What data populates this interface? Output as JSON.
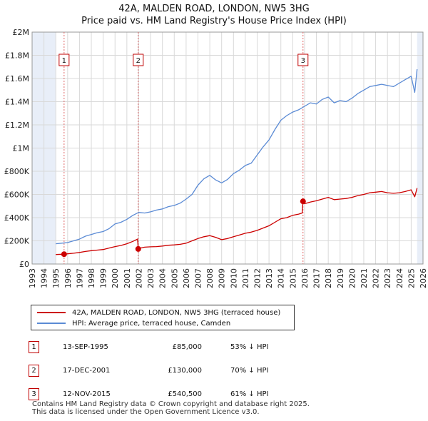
{
  "title_line1": "42A, MALDEN ROAD, LONDON, NW5 3HG",
  "title_line2": "Price paid vs. HM Land Registry's House Price Index (HPI)",
  "legend": {
    "property_label": "42A, MALDEN ROAD, LONDON, NW5 3HG (terraced house)",
    "hpi_label": "HPI: Average price, terraced house, Camden"
  },
  "colors": {
    "property": "#cc0000",
    "hpi": "#5b8bd5",
    "shade": "#e8eef8",
    "marker_line": "#e06666"
  },
  "sales": [
    {
      "num": "1",
      "date": "13-SEP-1995",
      "price": "£85,000",
      "hpi_diff": "53% ↓ HPI"
    },
    {
      "num": "2",
      "date": "17-DEC-2001",
      "price": "£130,000",
      "hpi_diff": "70% ↓ HPI"
    },
    {
      "num": "3",
      "date": "12-NOV-2015",
      "price": "£540,500",
      "hpi_diff": "61% ↓ HPI"
    }
  ],
  "footer": {
    "line1": "Contains HM Land Registry data © Crown copyright and database right 2025.",
    "line2": "This data is licensed under the Open Government Licence v3.0."
  },
  "chart_data": {
    "type": "line",
    "title": "42A, MALDEN ROAD, LONDON, NW5 3HG — Price paid vs. HM Land Registry's House Price Index (HPI)",
    "xlim": [
      1993,
      2026
    ],
    "ylim": [
      0,
      2000000
    ],
    "x_ticks": [
      1993,
      1994,
      1995,
      1996,
      1997,
      1998,
      1999,
      2000,
      2001,
      2002,
      2003,
      2004,
      2005,
      2006,
      2007,
      2008,
      2009,
      2010,
      2011,
      2012,
      2013,
      2014,
      2015,
      2016,
      2017,
      2018,
      2019,
      2020,
      2021,
      2022,
      2023,
      2024,
      2025,
      2026
    ],
    "y_ticks": [
      {
        "value": 0,
        "label": "£0"
      },
      {
        "value": 200000,
        "label": "£200K"
      },
      {
        "value": 400000,
        "label": "£400K"
      },
      {
        "value": 600000,
        "label": "£600K"
      },
      {
        "value": 800000,
        "label": "£800K"
      },
      {
        "value": 1000000,
        "label": "£1M"
      },
      {
        "value": 1200000,
        "label": "£1.2M"
      },
      {
        "value": 1400000,
        "label": "£1.4M"
      },
      {
        "value": 1600000,
        "label": "£1.6M"
      },
      {
        "value": 1800000,
        "label": "£1.8M"
      },
      {
        "value": 2000000,
        "label": "£2M"
      }
    ],
    "shaded_ranges": [
      [
        1993,
        1995
      ],
      [
        2025.5,
        2026
      ]
    ],
    "sale_markers": [
      {
        "label": "1",
        "x": 1995.7,
        "y": 85000
      },
      {
        "label": "2",
        "x": 2001.96,
        "y": 130000
      },
      {
        "label": "3",
        "x": 2015.87,
        "y": 540500
      }
    ],
    "series": [
      {
        "name": "HPI: Average price, terraced house, Camden",
        "x": [
          1995.0,
          1995.5,
          1996.0,
          1996.5,
          1997.0,
          1997.5,
          1998.0,
          1998.5,
          1999.0,
          1999.5,
          2000.0,
          2000.5,
          2001.0,
          2001.5,
          2002.0,
          2002.5,
          2003.0,
          2003.5,
          2004.0,
          2004.5,
          2005.0,
          2005.5,
          2006.0,
          2006.5,
          2007.0,
          2007.5,
          2008.0,
          2008.5,
          2009.0,
          2009.5,
          2010.0,
          2010.5,
          2011.0,
          2011.5,
          2012.0,
          2012.5,
          2013.0,
          2013.5,
          2014.0,
          2014.5,
          2015.0,
          2015.5,
          2016.0,
          2016.5,
          2017.0,
          2017.5,
          2018.0,
          2018.5,
          2019.0,
          2019.5,
          2020.0,
          2020.5,
          2021.0,
          2021.5,
          2022.0,
          2022.5,
          2023.0,
          2023.5,
          2024.0,
          2024.5,
          2025.0,
          2025.3,
          2025.5
        ],
        "values": [
          175000,
          180000,
          185000,
          200000,
          215000,
          240000,
          255000,
          270000,
          280000,
          305000,
          345000,
          360000,
          385000,
          420000,
          445000,
          440000,
          450000,
          465000,
          475000,
          495000,
          505000,
          525000,
          560000,
          600000,
          680000,
          735000,
          765000,
          725000,
          700000,
          730000,
          780000,
          810000,
          850000,
          870000,
          940000,
          1010000,
          1070000,
          1160000,
          1240000,
          1280000,
          1310000,
          1330000,
          1360000,
          1390000,
          1380000,
          1420000,
          1440000,
          1390000,
          1410000,
          1400000,
          1430000,
          1470000,
          1500000,
          1530000,
          1540000,
          1550000,
          1540000,
          1530000,
          1560000,
          1590000,
          1620000,
          1480000,
          1680000
        ]
      },
      {
        "name": "42A, MALDEN ROAD, LONDON, NW5 3HG (terraced house)",
        "x": [
          1995.0,
          1995.7,
          1996.0,
          1996.5,
          1997.0,
          1997.5,
          1998.0,
          1998.5,
          1999.0,
          1999.5,
          2000.0,
          2000.5,
          2001.0,
          2001.5,
          2001.9,
          2001.96,
          2002.0,
          2002.5,
          2003.0,
          2003.5,
          2004.0,
          2004.5,
          2005.0,
          2005.5,
          2006.0,
          2006.5,
          2007.0,
          2007.5,
          2008.0,
          2008.5,
          2009.0,
          2009.5,
          2010.0,
          2010.5,
          2011.0,
          2011.5,
          2012.0,
          2012.5,
          2013.0,
          2013.5,
          2014.0,
          2014.5,
          2015.0,
          2015.5,
          2015.8,
          2015.87,
          2016.0,
          2016.5,
          2017.0,
          2017.5,
          2018.0,
          2018.5,
          2019.0,
          2019.5,
          2020.0,
          2020.5,
          2021.0,
          2021.5,
          2022.0,
          2022.5,
          2023.0,
          2023.5,
          2024.0,
          2024.5,
          2025.0,
          2025.3,
          2025.5
        ],
        "values": [
          82000,
          85000,
          88000,
          93000,
          100000,
          108000,
          115000,
          120000,
          125000,
          138000,
          150000,
          160000,
          175000,
          195000,
          215000,
          130000,
          135000,
          145000,
          148000,
          150000,
          155000,
          162000,
          165000,
          170000,
          180000,
          200000,
          220000,
          235000,
          245000,
          230000,
          210000,
          220000,
          235000,
          250000,
          265000,
          275000,
          290000,
          310000,
          330000,
          360000,
          390000,
          400000,
          420000,
          430000,
          440000,
          540500,
          520000,
          535000,
          545000,
          560000,
          575000,
          555000,
          560000,
          565000,
          575000,
          590000,
          600000,
          615000,
          620000,
          625000,
          615000,
          610000,
          615000,
          625000,
          640000,
          580000,
          655000
        ]
      }
    ]
  }
}
